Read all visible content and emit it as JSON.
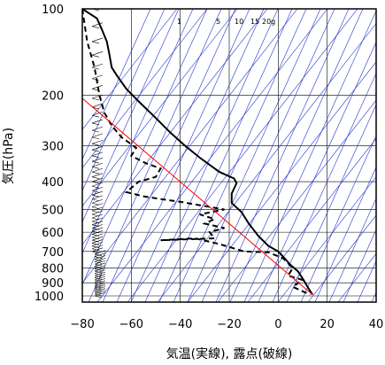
{
  "chart_data": {
    "type": "line",
    "title": "",
    "xlabel": "気温(実線), 露点(破線)",
    "ylabel": "気圧(hPa)",
    "xlim": [
      -80,
      40
    ],
    "ylim": [
      100,
      1050
    ],
    "y_scale": "log",
    "x_ticks": [
      -80,
      -60,
      -40,
      -20,
      0,
      20,
      40
    ],
    "y_ticks": [
      100,
      200,
      300,
      400,
      500,
      600,
      700,
      800,
      900,
      1000
    ],
    "mixing_ratio_labels": [
      "1",
      "5",
      "10",
      "15",
      "20g"
    ],
    "series": [
      {
        "style": "solid",
        "color": "#000000",
        "points": [
          [
            -80,
            100
          ],
          [
            -74,
            108
          ],
          [
            -72,
            118
          ],
          [
            -70,
            130
          ],
          [
            -69,
            143
          ],
          [
            -68,
            160
          ],
          [
            -66,
            170
          ],
          [
            -62,
            190
          ],
          [
            -57,
            210
          ],
          [
            -50,
            240
          ],
          [
            -44,
            270
          ],
          [
            -38,
            300
          ],
          [
            -32,
            330
          ],
          [
            -24,
            370
          ],
          [
            -18,
            390
          ],
          [
            -17,
            405
          ],
          [
            -19,
            440
          ],
          [
            -19,
            475
          ],
          [
            -15,
            510
          ],
          [
            -12,
            560
          ],
          [
            -8,
            620
          ],
          [
            -4,
            670
          ],
          [
            0,
            700
          ],
          [
            2,
            730
          ],
          [
            5,
            780
          ],
          [
            8,
            820
          ],
          [
            10,
            870
          ],
          [
            12,
            930
          ],
          [
            14,
            990
          ]
        ]
      },
      {
        "style": "dashed",
        "color": "#000000",
        "points": [
          [
            -80,
            100
          ],
          [
            -78,
            130
          ],
          [
            -75,
            160
          ],
          [
            -73,
            200
          ],
          [
            -71,
            230
          ],
          [
            -68,
            255
          ],
          [
            -64,
            280
          ],
          [
            -58,
            305
          ],
          [
            -60,
            325
          ],
          [
            -54,
            345
          ],
          [
            -48,
            360
          ],
          [
            -50,
            385
          ],
          [
            -57,
            400
          ],
          [
            -62,
            435
          ],
          [
            -55,
            450
          ],
          [
            -48,
            460
          ],
          [
            -40,
            470
          ],
          [
            -28,
            490
          ],
          [
            -22,
            500
          ],
          [
            -32,
            520
          ],
          [
            -26,
            540
          ],
          [
            -30,
            560
          ],
          [
            -22,
            580
          ],
          [
            -28,
            600
          ],
          [
            -26,
            630
          ],
          [
            -48,
            640
          ],
          [
            -34,
            630
          ],
          [
            -24,
            660
          ],
          [
            -14,
            700
          ],
          [
            -4,
            705
          ],
          [
            2,
            740
          ],
          [
            6,
            800
          ],
          [
            4,
            850
          ],
          [
            10,
            880
          ],
          [
            6,
            930
          ],
          [
            13,
            990
          ]
        ]
      },
      {
        "style": "solid",
        "color": "#ff0000",
        "points": [
          [
            -80,
            205
          ],
          [
            14,
            990
          ]
        ]
      }
    ]
  }
}
